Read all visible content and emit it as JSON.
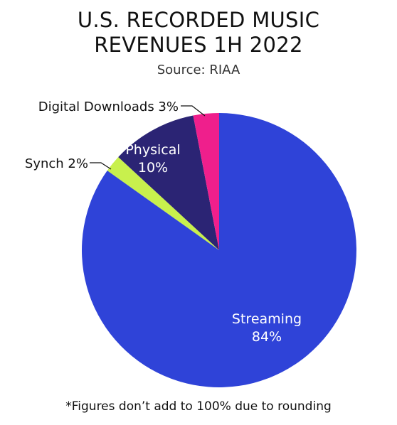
{
  "title_line1": "U.S. RECORDED MUSIC",
  "title_line2": "REVENUES 1H 2022",
  "subtitle": "Source: RIAA",
  "footnote": "*Figures don’t add to 100% due to rounding",
  "chart_data": {
    "type": "pie",
    "title": "U.S. RECORDED MUSIC REVENUES 1H 2022",
    "subtitle": "Source: RIAA",
    "slices": [
      {
        "label": "Streaming",
        "value": 84,
        "display": "84%",
        "color": "#2f43d8",
        "label_inside": true,
        "text_color": "#ffffff"
      },
      {
        "label": "Synch",
        "value": 2,
        "display": "2%",
        "color": "#c8f04d",
        "label_inside": false,
        "text_color": "#111111"
      },
      {
        "label": "Physical",
        "value": 10,
        "display": "10%",
        "color": "#2b2474",
        "label_inside": true,
        "text_color": "#ffffff"
      },
      {
        "label": "Digital Downloads",
        "value": 3,
        "display": "3%",
        "color": "#ef1f8c",
        "label_inside": false,
        "text_color": "#111111"
      }
    ],
    "legend": "none",
    "start": "12 o'clock, clockwise"
  }
}
